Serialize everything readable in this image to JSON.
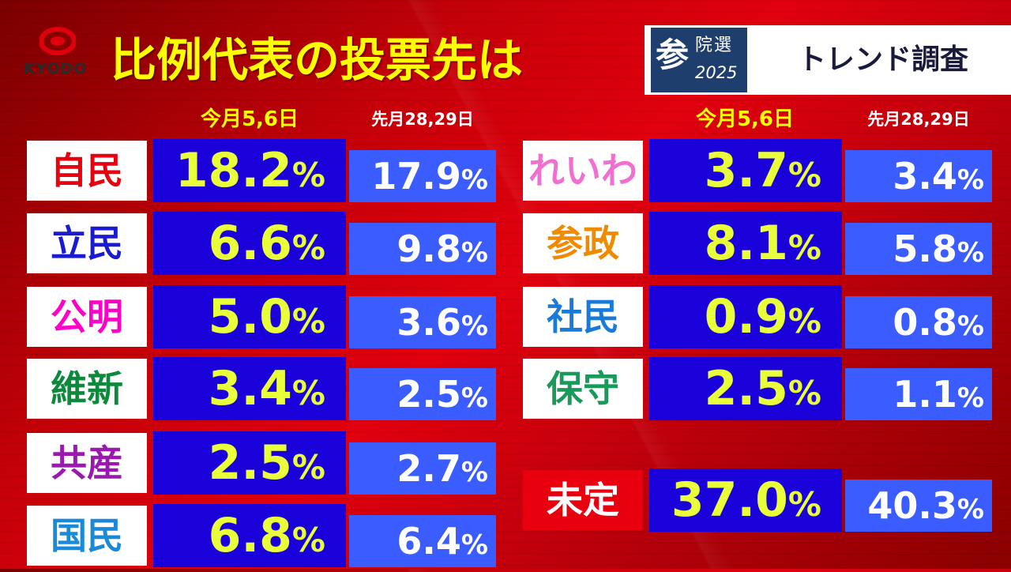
{
  "logo": {
    "text": "KYODO"
  },
  "title": "比例代表の投票先は",
  "badge": {
    "emblem_big": "参",
    "emblem_small": "院選",
    "emblem_year": "2025",
    "text": "トレンド調査"
  },
  "column_headers": {
    "current": "今月5,6日",
    "previous": "先月28,29日"
  },
  "colors": {
    "background": "#d0000c",
    "current_box": "#1a00d9",
    "previous_box": "#3b5cff",
    "current_value_text": "#e8ff3a",
    "title_text": "#ffff00"
  },
  "chart_data": {
    "type": "table",
    "title": "比例代表の投票先は",
    "columns": [
      "今月5,6日",
      "先月28,29日"
    ],
    "unit": "%",
    "rows": [
      {
        "party": "自民",
        "current": 18.2,
        "previous": 17.9,
        "current_text": "18.2",
        "previous_text": "17.9",
        "color": "#e8000e"
      },
      {
        "party": "立民",
        "current": 6.6,
        "previous": 9.8,
        "current_text": "6.6",
        "previous_text": "9.8",
        "color": "#1a1ad0"
      },
      {
        "party": "公明",
        "current": 5.0,
        "previous": 3.6,
        "current_text": "5.0",
        "previous_text": "3.6",
        "color": "#ff00c8"
      },
      {
        "party": "維新",
        "current": 3.4,
        "previous": 2.5,
        "current_text": "3.4",
        "previous_text": "2.5",
        "color": "#0a8a3a"
      },
      {
        "party": "共産",
        "current": 2.5,
        "previous": 2.7,
        "current_text": "2.5",
        "previous_text": "2.7",
        "color": "#9a1ab0"
      },
      {
        "party": "国民",
        "current": 6.8,
        "previous": 6.4,
        "current_text": "6.8",
        "previous_text": "6.4",
        "color": "#1a8ad8"
      },
      {
        "party": "れいわ",
        "current": 3.7,
        "previous": 3.4,
        "current_text": "3.7",
        "previous_text": "3.4",
        "color": "#f070d0"
      },
      {
        "party": "参政",
        "current": 8.1,
        "previous": 5.8,
        "current_text": "8.1",
        "previous_text": "5.8",
        "color": "#f08a00"
      },
      {
        "party": "社民",
        "current": 0.9,
        "previous": 0.8,
        "current_text": "0.9",
        "previous_text": "0.8",
        "color": "#1a7ad8"
      },
      {
        "party": "保守",
        "current": 2.5,
        "previous": 1.1,
        "current_text": "2.5",
        "previous_text": "1.1",
        "color": "#1a9a5a"
      },
      {
        "party": "未定",
        "current": 37.0,
        "previous": 40.3,
        "current_text": "37.0",
        "previous_text": "40.3",
        "color": "#ffffff"
      }
    ]
  }
}
